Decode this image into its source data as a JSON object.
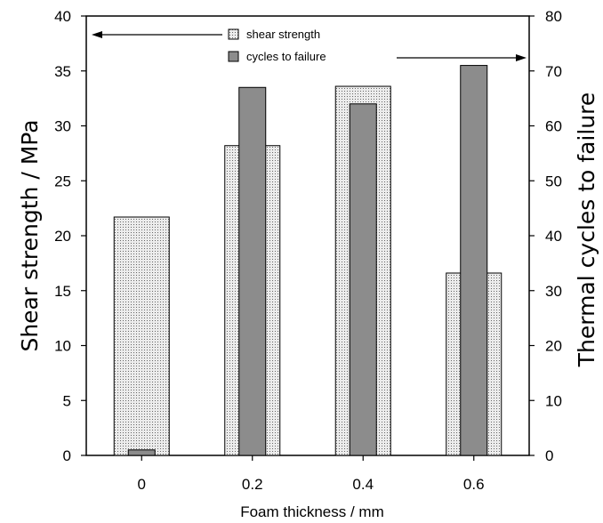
{
  "chart_data": {
    "type": "bar",
    "title": "",
    "xlabel": "Foam thickness / mm",
    "ylabel": "Shear strength / MPa",
    "y2label": "Thermal cycles to failure",
    "categories": [
      "0",
      "0.2",
      "0.4",
      "0.6"
    ],
    "ylim": [
      0,
      40
    ],
    "y2lim": [
      0,
      80
    ],
    "yticks": [
      0,
      5,
      10,
      15,
      20,
      25,
      30,
      35,
      40
    ],
    "y2ticks": [
      0,
      10,
      20,
      30,
      40,
      50,
      60,
      70,
      80
    ],
    "grid": false,
    "legend_position": "top-center",
    "series": [
      {
        "name": "shear strength",
        "axis": "left",
        "values": [
          21.7,
          28.2,
          33.6,
          16.6
        ],
        "color": "#e6e6e6",
        "pattern": "dotted"
      },
      {
        "name": "cycles to failure",
        "axis": "right",
        "values": [
          1,
          67,
          64,
          71
        ],
        "color": "#8c8c8c"
      }
    ]
  }
}
